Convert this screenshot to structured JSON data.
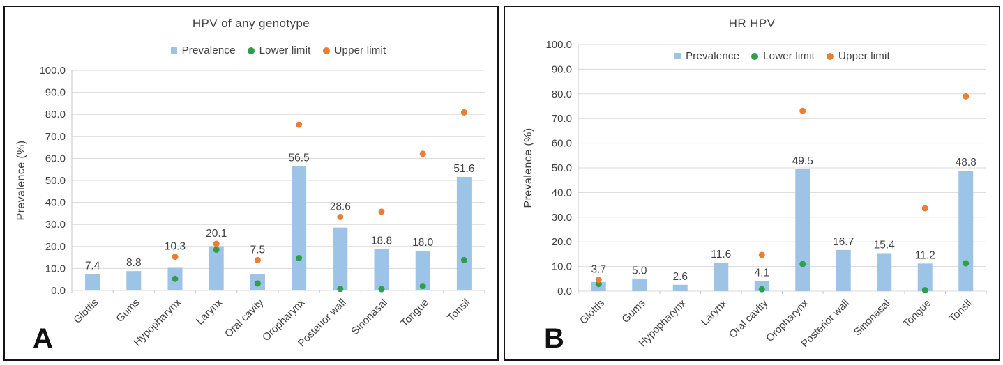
{
  "colors": {
    "bar": "#9DC3E6",
    "lower_limit": "#2E9E4C",
    "upper_limit": "#ED7D31",
    "gridline": "#D9D9D9",
    "axis_line": "#C6C6C6",
    "text": "#404040",
    "panel_border": "#141414"
  },
  "chart_data": [
    {
      "type": "bar",
      "panel_letter": "A",
      "title": "HPV of any genotype",
      "ylabel": "Prevalence (%)",
      "xlabel": "",
      "ylim": [
        0,
        100
      ],
      "ytick_step": 10,
      "grid": true,
      "legend_position": "above-plot",
      "legend": [
        "Prevalence",
        "Lower limit",
        "Upper limit"
      ],
      "categories": [
        "Glottis",
        "Gums",
        "Hypopharynx",
        "Larynx",
        "Oral cavity",
        "Oropharynx",
        "Posterior wall",
        "Sinonasal",
        "Tongue",
        "Tonsil"
      ],
      "series": [
        {
          "name": "Prevalence",
          "type": "bar",
          "color": "#9DC3E6",
          "values": [
            7.4,
            8.8,
            10.3,
            20.1,
            7.5,
            56.5,
            28.6,
            18.8,
            18.0,
            51.6
          ]
        },
        {
          "name": "Lower limit",
          "type": "point",
          "color": "#2E9E4C",
          "values": [
            null,
            null,
            5.3,
            18.5,
            3.2,
            14.7,
            0.7,
            0.6,
            2.0,
            13.8
          ]
        },
        {
          "name": "Upper limit",
          "type": "point",
          "color": "#ED7D31",
          "values": [
            null,
            null,
            15.3,
            21.2,
            13.8,
            75.3,
            33.4,
            35.8,
            62.1,
            80.9
          ]
        }
      ],
      "bar_labels": [
        "7.4",
        "8.8",
        "10.3",
        "20.1",
        "7.5",
        "56.5",
        "28.6",
        "18.8",
        "18.0",
        "51.6"
      ]
    },
    {
      "type": "bar",
      "panel_letter": "B",
      "title": "HR HPV",
      "ylabel": "Prevalence (%)",
      "xlabel": "",
      "ylim": [
        0,
        100
      ],
      "ytick_step": 10,
      "grid": true,
      "legend_position": "inside-plot-top",
      "legend": [
        "Prevalence",
        "Lower limit",
        "Upper limit"
      ],
      "categories": [
        "Glottis",
        "Gums",
        "Hypopharynx",
        "Larynx",
        "Oral cavity",
        "Oropharynx",
        "Posterior wall",
        "Sinonasal",
        "Tongue",
        "Tonsil"
      ],
      "series": [
        {
          "name": "Prevalence",
          "type": "bar",
          "color": "#9DC3E6",
          "values": [
            3.7,
            5.0,
            2.6,
            11.6,
            4.1,
            49.5,
            16.7,
            15.4,
            11.2,
            48.8
          ]
        },
        {
          "name": "Lower limit",
          "type": "point",
          "color": "#2E9E4C",
          "values": [
            2.9,
            null,
            null,
            null,
            0.8,
            11.0,
            null,
            null,
            0.4,
            11.3
          ]
        },
        {
          "name": "Upper limit",
          "type": "point",
          "color": "#ED7D31",
          "values": [
            4.6,
            null,
            null,
            null,
            14.7,
            73.1,
            null,
            null,
            33.6,
            79.0
          ]
        }
      ],
      "bar_labels": [
        "3.7",
        "5.0",
        "2.6",
        "11.6",
        "4.1",
        "49.5",
        "16.7",
        "15.4",
        "11.2",
        "48.8"
      ]
    }
  ]
}
